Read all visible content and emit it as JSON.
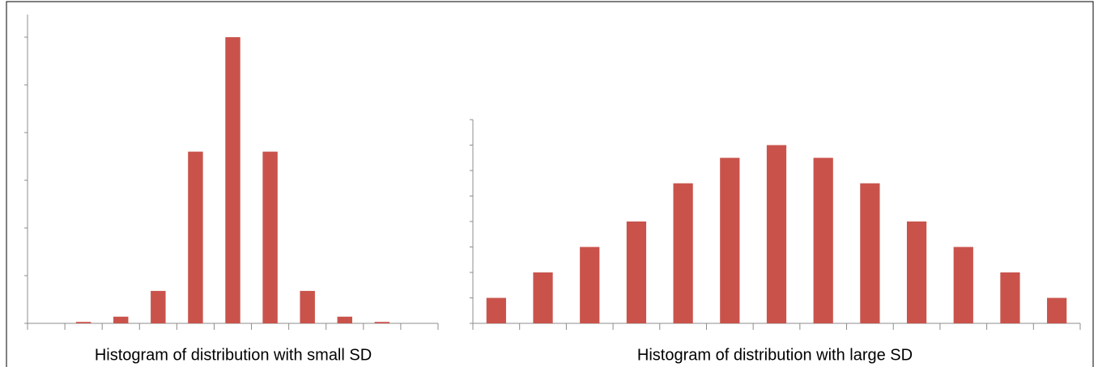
{
  "chart_data": [
    {
      "type": "bar",
      "title": "Histogram of distribution with small SD",
      "categories": [
        null,
        null,
        null,
        null,
        null,
        null,
        null,
        null,
        null,
        null,
        null
      ],
      "values": [
        0,
        0.03,
        0.14,
        0.68,
        3.6,
        6,
        3.6,
        0.68,
        0.14,
        0.03,
        0
      ],
      "color": "#c9534b",
      "ylim": [
        0,
        6
      ],
      "yticks": [
        0,
        1,
        2,
        3,
        4,
        5,
        6
      ],
      "grid": false
    },
    {
      "type": "bar",
      "title": "Histogram of distribution with large SD",
      "categories": [
        null,
        null,
        null,
        null,
        null,
        null,
        null,
        null,
        null,
        null,
        null,
        null,
        null
      ],
      "values": [
        1,
        2,
        3,
        4,
        5.5,
        6.5,
        7,
        6.5,
        5.5,
        4,
        3,
        2,
        1
      ],
      "color": "#c9534b",
      "ylim": [
        0,
        8
      ],
      "yticks": [
        0,
        1,
        2,
        3,
        4,
        5,
        6,
        7,
        8
      ],
      "grid": false
    }
  ]
}
